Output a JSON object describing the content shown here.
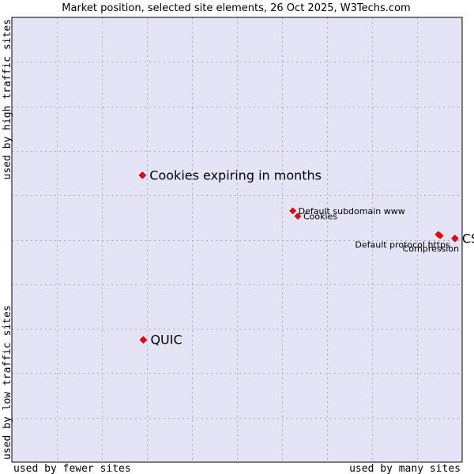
{
  "chart_data": {
    "type": "scatter",
    "title": "Market position, selected site elements, 26 Oct 2025, W3Techs.com",
    "xlabel_left": "used by fewer sites",
    "xlabel_right": "used by many sites",
    "ylabel_bottom": "used by low traffic sites",
    "ylabel_top": "used by high traffic sites",
    "xlim": [
      0,
      100
    ],
    "ylim": [
      0,
      100
    ],
    "grid": true,
    "colors": {
      "plot_bg": "#e4e4f6",
      "grid": "#a9a9b9",
      "border": "#000000",
      "marker": "#ff0000",
      "marker_edge": "#b00000"
    },
    "points": [
      {
        "name": "Cookies expiring in months",
        "x": 29,
        "y": 64.5,
        "size": "large",
        "anchor": "right"
      },
      {
        "name": "QUIC",
        "x": 29.2,
        "y": 27.5,
        "size": "large",
        "anchor": "right"
      },
      {
        "name": "Default subdomain www",
        "x": 62.4,
        "y": 56.5,
        "size": "small",
        "anchor": "right"
      },
      {
        "name": "Cookies",
        "x": 63.5,
        "y": 55.3,
        "size": "small",
        "anchor": "right"
      },
      {
        "name": "Default protocol https",
        "x": 94.7,
        "y": 51.2,
        "size": "small",
        "anchor": "left-below"
      },
      {
        "name": "Compression",
        "x": 95.1,
        "y": 50.9,
        "size": "small",
        "anchor": "left-below-2"
      },
      {
        "name": "CSS",
        "x": 98.4,
        "y": 50.3,
        "size": "large",
        "anchor": "right"
      }
    ]
  }
}
